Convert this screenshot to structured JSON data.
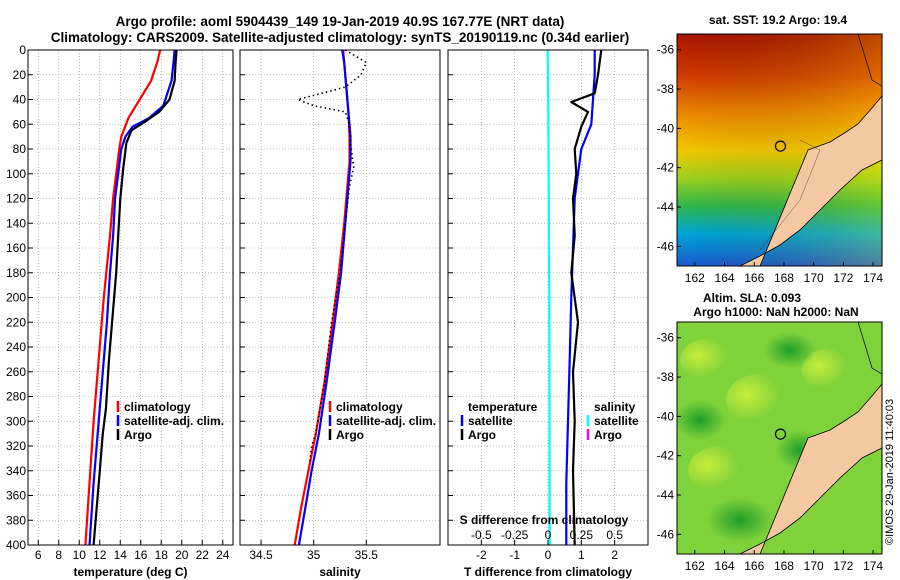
{
  "header": {
    "title_line1": "Argo profile: aoml 5904439_149 19-Jan-2019 40.9S 167.77E (NRT data)",
    "title_line2": "Climatology: CARS2009. Satellite-adjusted climatology: synTS_20190119.nc (0.34d earlier)"
  },
  "colors": {
    "climatology": "#ff0000",
    "satellite": "#0000ff",
    "argo": "#000000",
    "salinity_satellite": "#00ffff",
    "salinity_argo": "#ff00ff"
  },
  "chart_data": [
    {
      "type": "line",
      "name": "temperature-panel",
      "xlabel": "temperature (deg C)",
      "ylabel": "",
      "xlim": [
        5,
        25
      ],
      "ylim": [
        400,
        0
      ],
      "xticks": [
        6,
        8,
        10,
        12,
        14,
        16,
        18,
        20,
        22,
        24
      ],
      "yticks": [
        0,
        20,
        40,
        60,
        80,
        100,
        120,
        140,
        160,
        180,
        200,
        220,
        240,
        260,
        280,
        300,
        320,
        340,
        360,
        380,
        400
      ],
      "grid": true,
      "legend_position": "lower-right",
      "series": [
        {
          "name": "climatology",
          "color": "#ff0000",
          "dash": "solid",
          "x": [
            17.9,
            17.6,
            17.0,
            15.9,
            14.8,
            14.1,
            13.9,
            13.6,
            13.3,
            13.0,
            12.4,
            11.9,
            11.4,
            11.0,
            10.6
          ],
          "y": [
            0,
            10,
            25,
            40,
            55,
            70,
            80,
            100,
            120,
            150,
            200,
            250,
            300,
            350,
            400
          ]
        },
        {
          "name": "satellite-adj. clim.",
          "color": "#0000ff",
          "dash": "solid",
          "x": [
            19.3,
            19.2,
            19.0,
            18.2,
            16.8,
            15.2,
            14.5,
            14.1,
            13.8,
            13.5,
            13.3,
            13.0,
            12.7,
            12.3,
            11.9,
            11.4,
            11.0
          ],
          "y": [
            0,
            10,
            25,
            45,
            55,
            62,
            70,
            80,
            100,
            120,
            150,
            180,
            220,
            260,
            300,
            350,
            400
          ]
        },
        {
          "name": "Argo",
          "color": "#000000",
          "dash": "solid",
          "x": [
            19.5,
            19.4,
            19.3,
            18.8,
            17.8,
            16.4,
            15.1,
            14.6,
            14.3,
            14.0,
            13.8,
            13.6,
            13.3,
            12.9,
            12.6,
            12.3,
            12.0,
            11.8,
            11.4
          ],
          "y": [
            0,
            10,
            25,
            40,
            50,
            58,
            65,
            75,
            95,
            120,
            150,
            180,
            210,
            250,
            290,
            310,
            340,
            360,
            400
          ]
        }
      ]
    },
    {
      "type": "line",
      "name": "salinity-panel",
      "xlabel": "salinity",
      "ylabel": "",
      "xlim": [
        34.3,
        36.2
      ],
      "ylim": [
        400,
        0
      ],
      "xticks": [
        34.5,
        35,
        35.5
      ],
      "grid": true,
      "legend_position": "lower-right",
      "series": [
        {
          "name": "climatology",
          "color": "#ff0000",
          "dash": "solid",
          "x": [
            35.28,
            35.29,
            35.31,
            35.33,
            35.34,
            35.34,
            35.32,
            35.29,
            35.24,
            35.18,
            35.1,
            35.02,
            34.95,
            34.88,
            34.82
          ],
          "y": [
            0,
            10,
            30,
            50,
            70,
            90,
            110,
            140,
            180,
            220,
            270,
            310,
            340,
            370,
            400
          ]
        },
        {
          "name": "satellite-adj. clim.",
          "color": "#0000ff",
          "dash": "solid",
          "x": [
            35.27,
            35.29,
            35.31,
            35.33,
            35.35,
            35.35,
            35.33,
            35.3,
            35.26,
            35.2,
            35.12,
            35.05,
            34.98,
            34.92,
            34.86
          ],
          "y": [
            0,
            10,
            30,
            50,
            70,
            90,
            110,
            140,
            180,
            220,
            270,
            310,
            340,
            370,
            400
          ]
        },
        {
          "name": "Argo",
          "color": "#000000",
          "dash": "dotted",
          "x": [
            35.3,
            35.5,
            35.45,
            35.3,
            34.85,
            35.0,
            35.3,
            35.34,
            35.35,
            35.38,
            35.34,
            35.3,
            35.25,
            35.17,
            35.1,
            35.02,
            34.98,
            34.96
          ],
          "y": [
            0,
            10,
            20,
            30,
            40,
            45,
            50,
            60,
            75,
            95,
            110,
            140,
            180,
            220,
            270,
            310,
            320,
            335
          ]
        }
      ]
    },
    {
      "type": "line",
      "name": "difference-panel",
      "xlabel": "T difference from climatology",
      "xlabel_top": "S difference from climatology",
      "ylabel": "",
      "xlim": [
        -3,
        3
      ],
      "ylim": [
        400,
        0
      ],
      "xticks": [
        -2,
        -1,
        0,
        1,
        2
      ],
      "xticks_top": [
        "-0.5",
        "-0.25",
        "0",
        "0.25",
        "0.5"
      ],
      "grid": true,
      "legend_position": "lower-right",
      "legend_groups": {
        "temperature": [
          "satellite",
          "Argo"
        ],
        "salinity": [
          "satellite",
          "Argo"
        ]
      },
      "series": [
        {
          "name": "temperature satellite",
          "color": "#0000ff",
          "dash": "solid",
          "x": [
            1.4,
            1.4,
            1.35,
            1.3,
            1.0,
            0.9,
            0.8,
            0.75,
            0.7,
            0.65,
            0.6,
            0.55,
            0.55
          ],
          "y": [
            0,
            20,
            40,
            60,
            80,
            100,
            120,
            160,
            200,
            250,
            300,
            350,
            400
          ]
        },
        {
          "name": "temperature Argo",
          "color": "#000000",
          "dash": "solid",
          "x": [
            1.6,
            1.5,
            1.4,
            0.7,
            1.2,
            1.0,
            0.8,
            0.85,
            0.75,
            0.8,
            0.7,
            0.9,
            0.75,
            0.8,
            0.75,
            0.8
          ],
          "y": [
            0,
            20,
            35,
            42,
            50,
            62,
            80,
            100,
            120,
            150,
            180,
            220,
            260,
            300,
            340,
            400
          ]
        },
        {
          "name": "salinity satellite",
          "color": "#00ffff",
          "dash": "solid",
          "x": [
            -0.01,
            0.0,
            0.01,
            0.02,
            0.03,
            0.04,
            0.045,
            0.05
          ],
          "y": [
            0,
            20,
            60,
            100,
            160,
            220,
            300,
            400
          ]
        },
        {
          "name": "salinity Argo",
          "color": "#ff00ff",
          "dash": "solid",
          "x": [],
          "y": []
        }
      ]
    }
  ],
  "maps": {
    "sst": {
      "title": "sat. SST: 19.2 Argo: 19.4",
      "lat_ticks": [
        "-36",
        "-38",
        "-40",
        "-42",
        "-44",
        "-46"
      ],
      "lon_ticks": [
        "162",
        "164",
        "166",
        "168",
        "170",
        "172",
        "174"
      ],
      "marker_lon": 167.77,
      "marker_lat": -40.9
    },
    "sla": {
      "title_line1": "Altim. SLA: 0.093",
      "title_line2": "Argo h1000: NaN h2000: NaN",
      "lat_ticks": [
        "-36",
        "-38",
        "-40",
        "-42",
        "-44",
        "-46"
      ],
      "lon_ticks": [
        "162",
        "164",
        "166",
        "168",
        "170",
        "172",
        "174"
      ],
      "marker_lon": 167.77,
      "marker_lat": -40.9
    }
  },
  "legends": {
    "temp_panel": [
      "climatology",
      "satellite-adj. clim.",
      "Argo"
    ],
    "sal_panel": [
      "climatology",
      "satellite-adj. clim.",
      "Argo"
    ],
    "diff_temperature_heading": "temperature",
    "diff_salinity_heading": "salinity",
    "diff_temperature_items": [
      "satellite",
      "Argo"
    ],
    "diff_salinity_items": [
      "satellite",
      "Argo"
    ]
  },
  "credit": "©IMOS 29-Jan-2019 11:40:03"
}
